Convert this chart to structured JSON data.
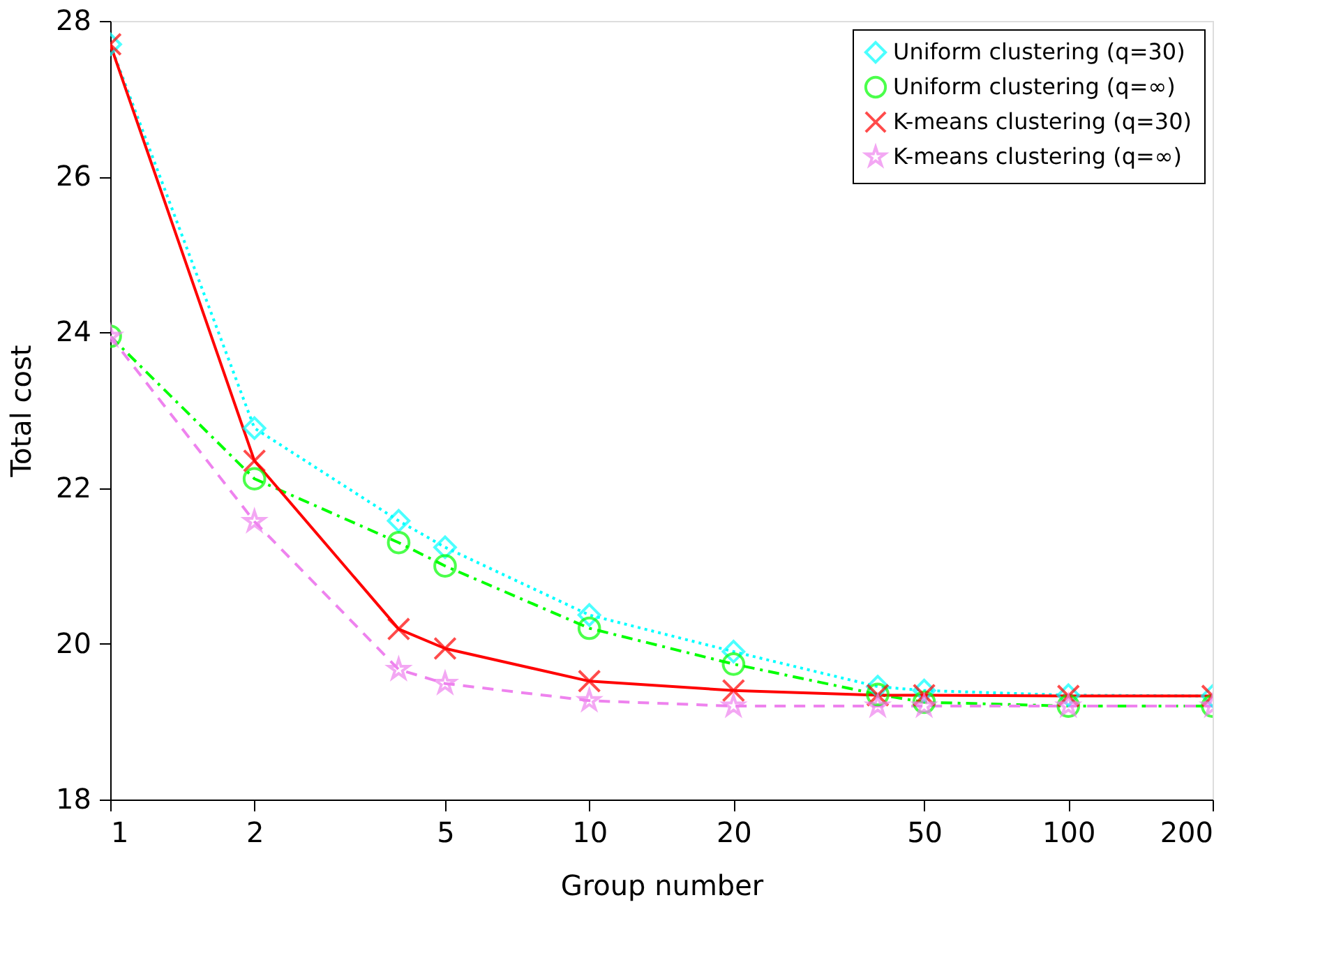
{
  "chart_data": {
    "type": "line",
    "xlabel": "Group number",
    "ylabel": "Total cost",
    "log": "x",
    "x": [
      1,
      2,
      4,
      5,
      10,
      20,
      40,
      50,
      100,
      200
    ],
    "xlim": [
      1,
      200
    ],
    "xticks": [
      1,
      2,
      5,
      10,
      20,
      50,
      100,
      200
    ],
    "ylim": [
      18,
      28
    ],
    "yticks": [
      18,
      20,
      22,
      24,
      26,
      28
    ],
    "grid": false,
    "legend": "top right",
    "series": [
      {
        "name": "Uniform clustering (q=30)",
        "color": "#00ffff",
        "marker": "diamond",
        "line_style": "dotted",
        "values": [
          27.7,
          22.77,
          21.58,
          21.24,
          20.37,
          19.9,
          19.45,
          19.4,
          19.34,
          19.33
        ]
      },
      {
        "name": "Uniform clustering (q=∞)",
        "color": "#00ff00",
        "marker": "circle",
        "line_style": "dashdot",
        "values": [
          23.95,
          22.12,
          21.3,
          21.0,
          20.2,
          19.74,
          19.35,
          19.25,
          19.2,
          19.2
        ]
      },
      {
        "name": "K-means clustering (q=30)",
        "color": "#ff0000",
        "marker": "cross",
        "line_style": "solid",
        "values": [
          27.7,
          22.35,
          20.19,
          19.94,
          19.52,
          19.4,
          19.34,
          19.34,
          19.33,
          19.33
        ]
      },
      {
        "name": "K-means clustering (q=∞)",
        "color": "#ee82ee",
        "marker": "star",
        "line_style": "dashed",
        "values": [
          23.95,
          21.57,
          19.67,
          19.49,
          19.27,
          19.2,
          19.2,
          19.2,
          19.2,
          19.2
        ]
      }
    ]
  }
}
